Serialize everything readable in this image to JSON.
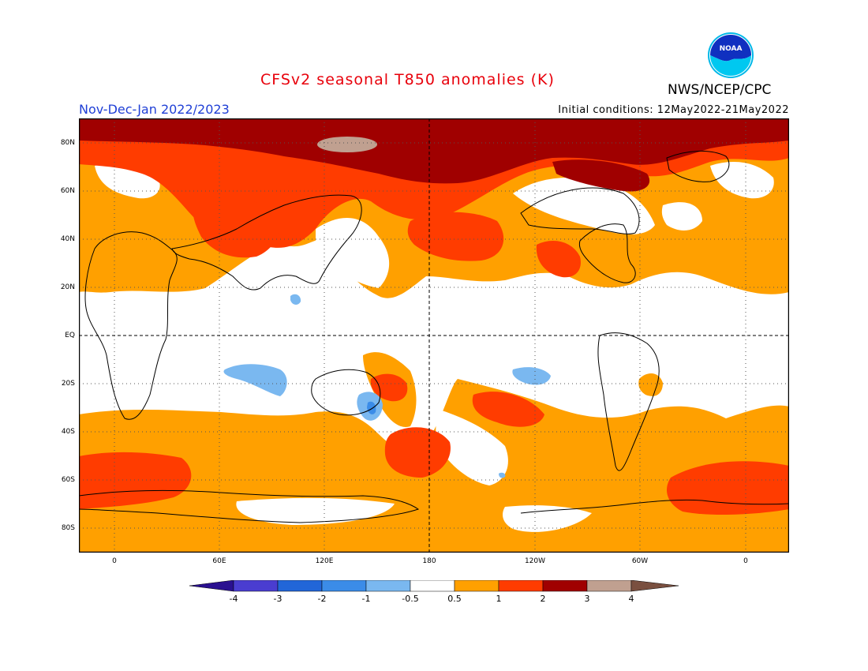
{
  "header": {
    "title": "CFSv2 seasonal T850 anomalies (K)",
    "agency": "NWS/NCEP/CPC",
    "period": "Nov-Dec-Jan 2022/2023",
    "initial_conditions": "Initial conditions: 12May2022-21May2022",
    "logo_text": "NOAA"
  },
  "map": {
    "lat_labels": [
      "80N",
      "60N",
      "40N",
      "20N",
      "EQ",
      "20S",
      "40S",
      "60S",
      "80S"
    ],
    "lon_labels": [
      "0",
      "60E",
      "120E",
      "180",
      "120W",
      "60W",
      "0"
    ]
  },
  "colorbar": {
    "labels": [
      "-4",
      "-3",
      "-2",
      "-1",
      "-0.5",
      "0.5",
      "1",
      "2",
      "3",
      "4"
    ],
    "colors": [
      "#2a1090",
      "#4a3dd0",
      "#2266d8",
      "#3b8ce8",
      "#7ab8f0",
      "#ffffff",
      "#ffa000",
      "#ff3c00",
      "#a00000",
      "#c0a090",
      "#7a5040"
    ]
  },
  "colors": {
    "zero": "#ffffff",
    "warm1": "#ffa000",
    "warm2": "#ff3c00",
    "warm3": "#a00000",
    "warm4": "#c0a090",
    "cool1": "#7ab8f0",
    "cool2": "#3b8ce8"
  }
}
